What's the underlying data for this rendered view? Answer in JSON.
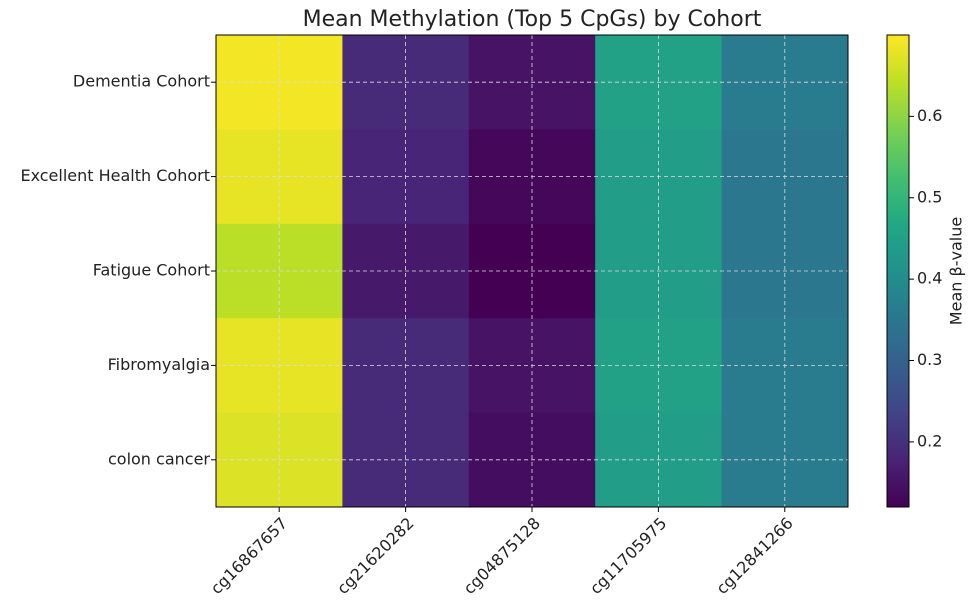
{
  "chart_data": {
    "type": "heatmap",
    "title": "Mean Methylation (Top 5 CpGs) by Cohort",
    "x_categories": [
      "cg16867657",
      "cg21620282",
      "cg04875128",
      "cg11705975",
      "cg12841266"
    ],
    "y_categories": [
      "Dementia Cohort",
      "Excellent Health Cohort",
      "Fatigue Cohort",
      "Fibromyalgia",
      "colon cancer"
    ],
    "values": [
      [
        0.69,
        0.19,
        0.15,
        0.45,
        0.36
      ],
      [
        0.68,
        0.18,
        0.13,
        0.44,
        0.35
      ],
      [
        0.64,
        0.16,
        0.12,
        0.44,
        0.35
      ],
      [
        0.68,
        0.19,
        0.15,
        0.45,
        0.36
      ],
      [
        0.67,
        0.19,
        0.14,
        0.44,
        0.36
      ]
    ],
    "colormap": "viridis",
    "clim": [
      0.12,
      0.7
    ],
    "cticks": [
      0.2,
      0.3,
      0.4,
      0.5,
      0.6
    ],
    "colorbar_label": "Mean β-value",
    "grid": true
  }
}
